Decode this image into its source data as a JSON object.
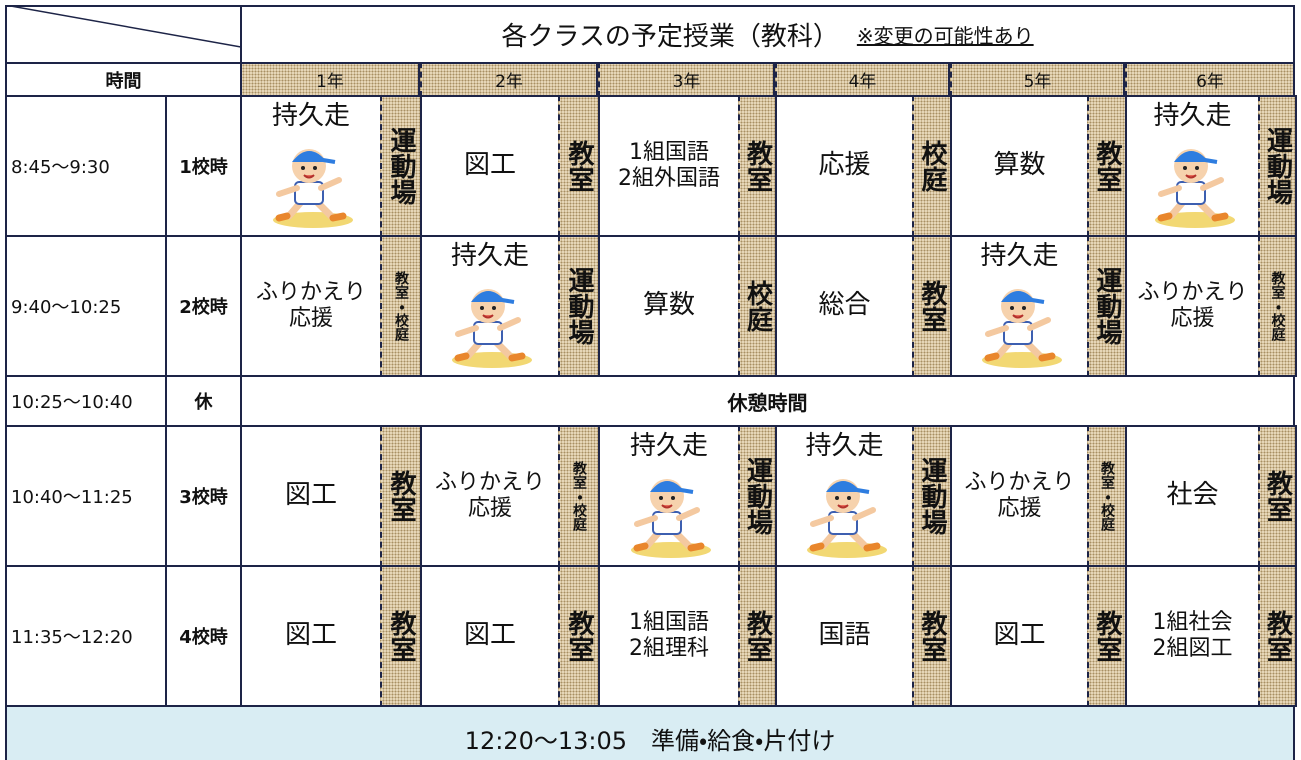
{
  "header": {
    "title": "各クラスの予定授業（教科）",
    "note": "※変更の可能性あり"
  },
  "columns": {
    "time": "時間",
    "grades": [
      "1年",
      "2年",
      "3年",
      "4年",
      "5年",
      "6年"
    ]
  },
  "rows": [
    {
      "time": "8:45〜9:30",
      "period": "1校時",
      "cells": [
        {
          "lines": [
            "持久走"
          ],
          "runner": true,
          "place": "運動場"
        },
        {
          "lines": [
            "図工"
          ],
          "place": "教室"
        },
        {
          "lines": [
            "1組国語",
            "2組外国語"
          ],
          "place": "教室"
        },
        {
          "lines": [
            "応援"
          ],
          "place": "校庭"
        },
        {
          "lines": [
            "算数"
          ],
          "place": "教室"
        },
        {
          "lines": [
            "持久走"
          ],
          "runner": true,
          "place": "運動場"
        }
      ]
    },
    {
      "time": "9:40〜10:25",
      "period": "2校時",
      "cells": [
        {
          "lines": [
            "ふりかえり",
            "応援"
          ],
          "place": "教室・校庭"
        },
        {
          "lines": [
            "持久走"
          ],
          "runner": true,
          "place": "運動場"
        },
        {
          "lines": [
            "算数"
          ],
          "place": "校庭"
        },
        {
          "lines": [
            "総合"
          ],
          "place": "教室"
        },
        {
          "lines": [
            "持久走"
          ],
          "runner": true,
          "place": "運動場"
        },
        {
          "lines": [
            "ふりかえり",
            "応援"
          ],
          "place": "教室・校庭"
        }
      ]
    },
    {
      "time": "10:25〜10:40",
      "period": "休",
      "break": "休憩時間"
    },
    {
      "time": "10:40〜11:25",
      "period": "3校時",
      "cells": [
        {
          "lines": [
            "図工"
          ],
          "place": "教室"
        },
        {
          "lines": [
            "ふりかえり",
            "応援"
          ],
          "place": "教室・校庭"
        },
        {
          "lines": [
            "持久走"
          ],
          "runner": true,
          "place": "運動場"
        },
        {
          "lines": [
            "持久走"
          ],
          "runner": true,
          "place": "運動場"
        },
        {
          "lines": [
            "ふりかえり",
            "応援"
          ],
          "place": "教室・校庭"
        },
        {
          "lines": [
            "社会"
          ],
          "place": "教室"
        }
      ]
    },
    {
      "time": "11:35〜12:20",
      "period": "4校時",
      "cells": [
        {
          "lines": [
            "図工"
          ],
          "place": "教室"
        },
        {
          "lines": [
            "図工"
          ],
          "place": "教室"
        },
        {
          "lines": [
            "1組国語",
            "2組理科"
          ],
          "place": "教室"
        },
        {
          "lines": [
            "国語"
          ],
          "place": "教室"
        },
        {
          "lines": [
            "図工"
          ],
          "place": "教室"
        },
        {
          "lines": [
            "1組社会",
            "2組図工"
          ],
          "place": "教室"
        }
      ]
    }
  ],
  "lunch": "12:20〜13:05　準備・給食・片付け"
}
